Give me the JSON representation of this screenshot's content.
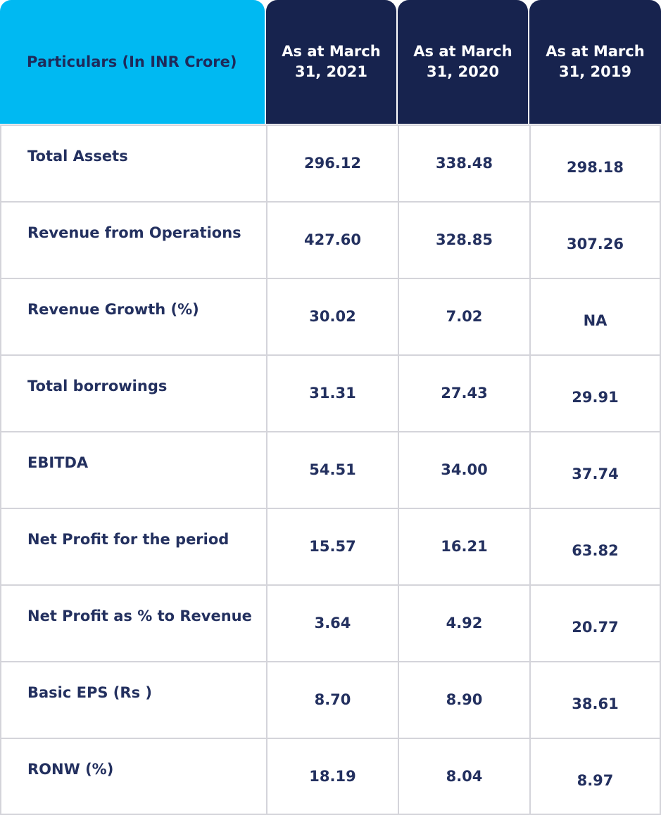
{
  "header": {
    "particulars": "Particulars (In INR Crore)",
    "years": [
      "As at March 31, 2021",
      "As at March 31, 2020",
      "As at March 31, 2019"
    ]
  },
  "colors": {
    "particulars_header": "#00b9f2",
    "year_header": "#17234e",
    "text": "#23305f"
  },
  "rows": [
    {
      "label": "Total Assets",
      "values": [
        "296.12",
        "338.48",
        "298.18"
      ]
    },
    {
      "label": "Revenue from Operations",
      "values": [
        "427.60",
        "328.85",
        "307.26"
      ]
    },
    {
      "label": "Revenue Growth (%)",
      "values": [
        "30.02",
        "7.02",
        "NA"
      ]
    },
    {
      "label": "Total borrowings",
      "values": [
        "31.31",
        "27.43",
        "29.91"
      ]
    },
    {
      "label": "EBITDA",
      "values": [
        "54.51",
        "34.00",
        "37.74"
      ]
    },
    {
      "label": "Net Profit for the period",
      "values": [
        "15.57",
        "16.21",
        "63.82"
      ]
    },
    {
      "label": "Net Profit as % to Revenue",
      "values": [
        "3.64",
        "4.92",
        "20.77"
      ]
    },
    {
      "label": "Basic EPS (Rs )",
      "values": [
        "8.70",
        "8.90",
        "38.61"
      ]
    },
    {
      "label": "RONW (%)",
      "values": [
        "18.19",
        "8.04",
        "8.97"
      ]
    }
  ]
}
